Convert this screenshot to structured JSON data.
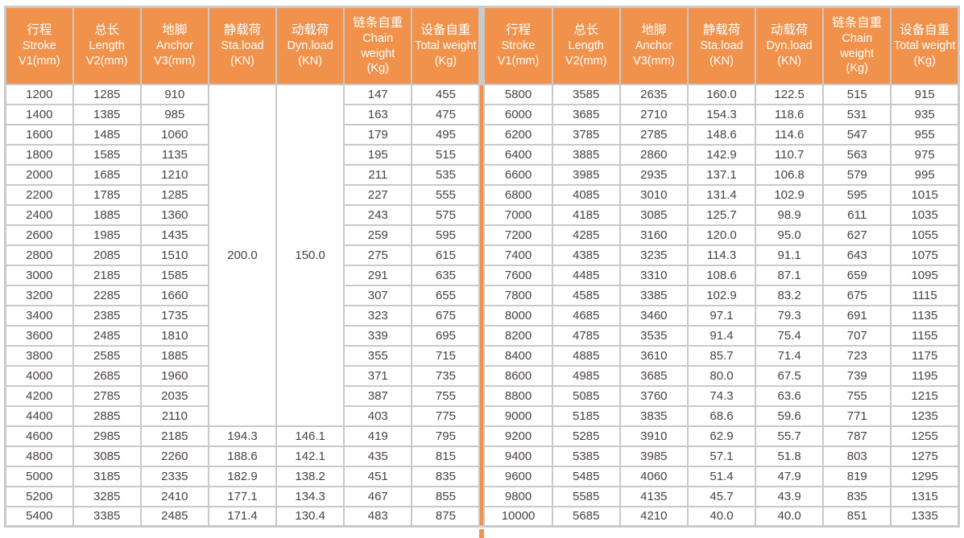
{
  "colors": {
    "header_bg": "#F0924B",
    "grid_line": "#C9C9C9",
    "body_text": "#4A4042",
    "header_text": "#FFFFFF",
    "center_divider": "#F0924B"
  },
  "chart_data": {
    "type": "table",
    "header_columns": [
      {
        "cn": "行程",
        "en": "Stroke",
        "unit": "V1(mm)",
        "key": "stroke"
      },
      {
        "cn": "总长",
        "en": "Length",
        "unit": "V2(mm)",
        "key": "length"
      },
      {
        "cn": "地脚",
        "en": "Anchor",
        "unit": "V3(mm)",
        "key": "anchor"
      },
      {
        "cn": "静载荷",
        "en": "Sta.load",
        "unit": "(KN)",
        "key": "sta-load"
      },
      {
        "cn": "动载荷",
        "en": "Dyn.load",
        "unit": "(KN)",
        "key": "dyn-load"
      },
      {
        "cn": "链条自重",
        "en": "Chain weight",
        "unit": "(Kg)",
        "key": "chain-weight"
      },
      {
        "cn": "设备自重",
        "en": "Total weight",
        "unit": "(Kg)",
        "key": "total-weight"
      }
    ],
    "left_half": {
      "merged_cells": {
        "sta_load": "200.0",
        "dyn_load": "150.0",
        "row_span": 17
      },
      "rows_in_merged_region": [
        [
          "1200",
          "1285",
          "910",
          "147",
          "455"
        ],
        [
          "1400",
          "1385",
          "985",
          "163",
          "475"
        ],
        [
          "1600",
          "1485",
          "1060",
          "179",
          "495"
        ],
        [
          "1800",
          "1585",
          "1135",
          "195",
          "515"
        ],
        [
          "2000",
          "1685",
          "1210",
          "211",
          "535"
        ],
        [
          "2200",
          "1785",
          "1285",
          "227",
          "555"
        ],
        [
          "2400",
          "1885",
          "1360",
          "243",
          "575"
        ],
        [
          "2600",
          "1985",
          "1435",
          "259",
          "595"
        ],
        [
          "2800",
          "2085",
          "1510",
          "275",
          "615"
        ],
        [
          "3000",
          "2185",
          "1585",
          "291",
          "635"
        ],
        [
          "3200",
          "2285",
          "1660",
          "307",
          "655"
        ],
        [
          "3400",
          "2385",
          "1735",
          "323",
          "675"
        ],
        [
          "3600",
          "2485",
          "1810",
          "339",
          "695"
        ],
        [
          "3800",
          "2585",
          "1885",
          "355",
          "715"
        ],
        [
          "4000",
          "2685",
          "1960",
          "371",
          "735"
        ],
        [
          "4200",
          "2785",
          "2035",
          "387",
          "755"
        ],
        [
          "4400",
          "2885",
          "2110",
          "403",
          "775"
        ]
      ],
      "rows_full": [
        [
          "4600",
          "2985",
          "2185",
          "194.3",
          "146.1",
          "419",
          "795"
        ],
        [
          "4800",
          "3085",
          "2260",
          "188.6",
          "142.1",
          "435",
          "815"
        ],
        [
          "5000",
          "3185",
          "2335",
          "182.9",
          "138.2",
          "451",
          "835"
        ],
        [
          "5200",
          "3285",
          "2410",
          "177.1",
          "134.3",
          "467",
          "855"
        ],
        [
          "5400",
          "3385",
          "2485",
          "171.4",
          "130.4",
          "483",
          "875"
        ]
      ]
    },
    "right_half": {
      "rows": [
        [
          "5800",
          "3585",
          "2635",
          "160.0",
          "122.5",
          "515",
          "915"
        ],
        [
          "6000",
          "3685",
          "2710",
          "154.3",
          "118.6",
          "531",
          "935"
        ],
        [
          "6200",
          "3785",
          "2785",
          "148.6",
          "114.6",
          "547",
          "955"
        ],
        [
          "6400",
          "3885",
          "2860",
          "142.9",
          "110.7",
          "563",
          "975"
        ],
        [
          "6600",
          "3985",
          "2935",
          "137.1",
          "106.8",
          "579",
          "995"
        ],
        [
          "6800",
          "4085",
          "3010",
          "131.4",
          "102.9",
          "595",
          "1015"
        ],
        [
          "7000",
          "4185",
          "3085",
          "125.7",
          "98.9",
          "611",
          "1035"
        ],
        [
          "7200",
          "4285",
          "3160",
          "120.0",
          "95.0",
          "627",
          "1055"
        ],
        [
          "7400",
          "4385",
          "3235",
          "114.3",
          "91.1",
          "643",
          "1075"
        ],
        [
          "7600",
          "4485",
          "3310",
          "108.6",
          "87.1",
          "659",
          "1095"
        ],
        [
          "7800",
          "4585",
          "3385",
          "102.9",
          "83.2",
          "675",
          "1115"
        ],
        [
          "8000",
          "4685",
          "3460",
          "97.1",
          "79.3",
          "691",
          "1135"
        ],
        [
          "8200",
          "4785",
          "3535",
          "91.4",
          "75.4",
          "707",
          "1155"
        ],
        [
          "8400",
          "4885",
          "3610",
          "85.7",
          "71.4",
          "723",
          "1175"
        ],
        [
          "8600",
          "4985",
          "3685",
          "80.0",
          "67.5",
          "739",
          "1195"
        ],
        [
          "8800",
          "5085",
          "3760",
          "74.3",
          "63.6",
          "755",
          "1215"
        ],
        [
          "9000",
          "5185",
          "3835",
          "68.6",
          "59.6",
          "771",
          "1235"
        ],
        [
          "9200",
          "5285",
          "3910",
          "62.9",
          "55.7",
          "787",
          "1255"
        ],
        [
          "9400",
          "5385",
          "3985",
          "57.1",
          "51.8",
          "803",
          "1275"
        ],
        [
          "9600",
          "5485",
          "4060",
          "51.4",
          "47.9",
          "819",
          "1295"
        ],
        [
          "9800",
          "5585",
          "4135",
          "45.7",
          "43.9",
          "835",
          "1315"
        ],
        [
          "10000",
          "5685",
          "4210",
          "40.0",
          "40.0",
          "851",
          "1335"
        ]
      ]
    }
  }
}
